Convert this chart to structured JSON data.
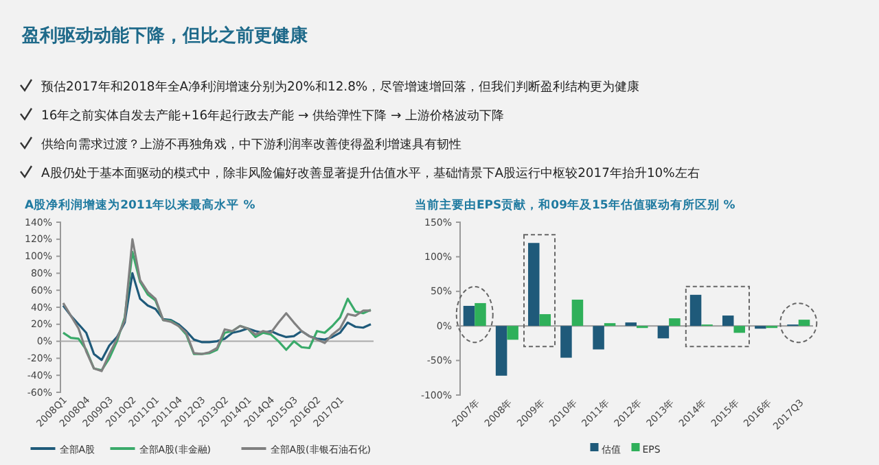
{
  "chart_data": [
    {
      "type": "other",
      "title": "盈利驱动动能下降，但比之前更健康",
      "annotations": [
        "预估2017年和2018年全A净利润增速分别为20%和12.8%，尽管增速增回落，但我们判断盈利结构更为健康",
        "16年之前实体自发去产能+16年起行政去产能 → 供给弹性下降 → 上游价格波动下降",
        "供给向需求过渡？上游不再独角戏，中下游利润率改善使得盈利增速具有韧性",
        "A股仍处于基本面驱动的模式中，除非风险偏好改善显著提升估值水平，基础情景下A股运行中枢较2017年抬升10%左右"
      ]
    },
    {
      "type": "line",
      "title": "A股净利润增速为2011年以来最高水平 %",
      "categories": [
        "2008Q1",
        null,
        null,
        "2008Q4",
        null,
        null,
        "2009Q3",
        null,
        null,
        "2010Q2",
        null,
        null,
        "2011Q1",
        null,
        null,
        "2011Q4",
        null,
        null,
        "2012Q3",
        null,
        null,
        "2013Q2",
        null,
        null,
        "2014Q1",
        null,
        null,
        "2014Q4",
        null,
        null,
        "2015Q3",
        null,
        null,
        "2016Q2",
        null,
        null,
        "2017Q1",
        null,
        null,
        null,
        null
      ],
      "ylim": [
        -60,
        140
      ],
      "yticks": [
        {
          "value": -60,
          "label": "-60%"
        },
        {
          "value": -40,
          "label": "-40%"
        },
        {
          "value": -20,
          "label": "-20%"
        },
        {
          "value": 0,
          "label": "0%"
        },
        {
          "value": 20,
          "label": "20%"
        },
        {
          "value": 40,
          "label": "40%"
        },
        {
          "value": 60,
          "label": "60%"
        },
        {
          "value": 80,
          "label": "80%"
        },
        {
          "value": 100,
          "label": "100%"
        },
        {
          "value": 120,
          "label": "120%"
        },
        {
          "value": 140,
          "label": "140%"
        }
      ],
      "legend": "bottom",
      "marker": "none",
      "line_style": "solid",
      "series": [
        {
          "name": "全部A股",
          "color": "#1f5a7a",
          "values": [
            42,
            30,
            20,
            10,
            -15,
            -22,
            -5,
            5,
            22,
            80,
            50,
            42,
            38,
            26,
            25,
            20,
            12,
            2,
            -1,
            -1,
            0,
            3,
            10,
            12,
            15,
            12,
            10,
            12,
            8,
            5,
            6,
            12,
            6,
            3,
            2,
            5,
            10,
            22,
            17,
            16,
            20
          ]
        },
        {
          "name": "全部A股(非金融)",
          "color": "#3aaa6a",
          "values": [
            10,
            4,
            3,
            -10,
            -32,
            -34,
            -20,
            0,
            28,
            105,
            70,
            55,
            48,
            25,
            24,
            18,
            8,
            -15,
            -15,
            -14,
            -10,
            10,
            12,
            18,
            15,
            5,
            10,
            8,
            0,
            -10,
            0,
            -7,
            -8,
            12,
            10,
            18,
            28,
            50,
            35,
            33,
            37
          ]
        },
        {
          "name": "全部A股(非银石油石化)",
          "color": "#808080",
          "values": [
            45,
            30,
            15,
            -12,
            -32,
            -35,
            -15,
            3,
            25,
            120,
            72,
            58,
            50,
            25,
            23,
            18,
            10,
            -14,
            -15,
            -13,
            -8,
            14,
            12,
            18,
            15,
            8,
            12,
            10,
            22,
            33,
            22,
            12,
            6,
            2,
            -2,
            8,
            15,
            32,
            30,
            36,
            36
          ]
        }
      ]
    },
    {
      "type": "bar",
      "title": "当前主要由EPS贡献，和09年及15年估值驱动有所区别 %",
      "categories": [
        "2007年",
        "2008年",
        "2009年",
        "2010年",
        "2011年",
        "2012年",
        "2013年",
        "2014年",
        "2015年",
        "2016年",
        "2017Q3"
      ],
      "ylim": [
        -100,
        150
      ],
      "yticks": [
        {
          "value": -100,
          "label": "-100%"
        },
        {
          "value": -50,
          "label": "-50%"
        },
        {
          "value": 0,
          "label": "0%"
        },
        {
          "value": 50,
          "label": "50%"
        },
        {
          "value": 100,
          "label": "100%"
        },
        {
          "value": 150,
          "label": "150%"
        }
      ],
      "legend": "bottom",
      "series": [
        {
          "name": "估值",
          "color": "#1f5a7a",
          "values": [
            29,
            -72,
            120,
            -46,
            -34,
            5,
            -18,
            45,
            15,
            -4,
            2
          ]
        },
        {
          "name": "EPS",
          "color": "#2fb05a",
          "values": [
            33,
            -20,
            17,
            38,
            4,
            -3,
            11,
            2,
            -10,
            -3,
            9
          ]
        }
      ]
    }
  ]
}
